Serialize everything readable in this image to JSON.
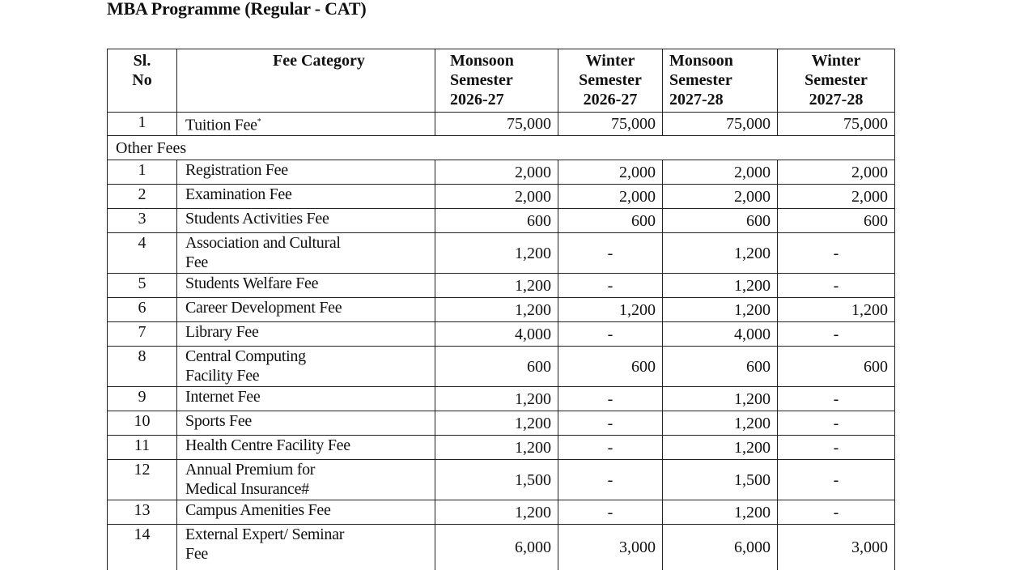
{
  "title": "MBA Programme (Regular - CAT)",
  "headers": {
    "sl": [
      "Sl.",
      "No"
    ],
    "category": "Fee Category",
    "columns": [
      [
        "Monsoon",
        "Semester",
        "2026-27"
      ],
      [
        "Winter",
        "Semester",
        "2026-27"
      ],
      [
        "Monsoon",
        "Semester",
        "2027-28"
      ],
      [
        "Winter",
        "Semester",
        "2027-28"
      ]
    ]
  },
  "tuition": {
    "sl": "1",
    "name": "Tuition Fee",
    "mark": "*",
    "values": [
      "75,000",
      "75,000",
      "75,000",
      "75,000"
    ]
  },
  "other_fees_label": "Other Fees",
  "rows": [
    {
      "sl": "1",
      "name": [
        "Registration Fee"
      ],
      "values": [
        "2,000",
        "2,000",
        "2,000",
        "2,000"
      ]
    },
    {
      "sl": "2",
      "name": [
        "Examination Fee"
      ],
      "values": [
        "2,000",
        "2,000",
        "2,000",
        "2,000"
      ]
    },
    {
      "sl": "3",
      "name": [
        "Students Activities Fee"
      ],
      "values": [
        "600",
        "600",
        "600",
        "600"
      ]
    },
    {
      "sl": "4",
      "name": [
        "Association and Cultural",
        "Fee"
      ],
      "values": [
        "1,200",
        "-",
        "1,200",
        "-"
      ]
    },
    {
      "sl": "5",
      "name": [
        "Students Welfare Fee"
      ],
      "values": [
        "1,200",
        "-",
        "1,200",
        "-"
      ]
    },
    {
      "sl": "6",
      "name": [
        "Career Development Fee"
      ],
      "values": [
        "1,200",
        "1,200",
        "1,200",
        "1,200"
      ]
    },
    {
      "sl": "7",
      "name": [
        "Library Fee"
      ],
      "values": [
        "4,000",
        "-",
        "4,000",
        "-"
      ]
    },
    {
      "sl": "8",
      "name": [
        "Central Computing",
        "Facility Fee"
      ],
      "values": [
        "600",
        "600",
        "600",
        "600"
      ]
    },
    {
      "sl": "9",
      "name": [
        "Internet Fee"
      ],
      "values": [
        "1,200",
        "-",
        "1,200",
        "-"
      ]
    },
    {
      "sl": "10",
      "name": [
        "Sports Fee"
      ],
      "values": [
        "1,200",
        "-",
        "1,200",
        "-"
      ]
    },
    {
      "sl": "11",
      "name": [
        "Health Centre Facility Fee"
      ],
      "values": [
        "1,200",
        "-",
        "1,200",
        "-"
      ]
    },
    {
      "sl": "12",
      "name": [
        "Annual Premium for",
        "Medical Insurance#"
      ],
      "values": [
        "1,500",
        "-",
        "1,500",
        "-"
      ]
    },
    {
      "sl": "13",
      "name": [
        "Campus Amenities Fee"
      ],
      "values": [
        "1,200",
        "-",
        "1,200",
        "-"
      ]
    },
    {
      "sl": "14",
      "name": [
        "External Expert/ Seminar",
        "Fee"
      ],
      "values": [
        "6,000",
        "3,000",
        "6,000",
        "3,000"
      ]
    }
  ]
}
